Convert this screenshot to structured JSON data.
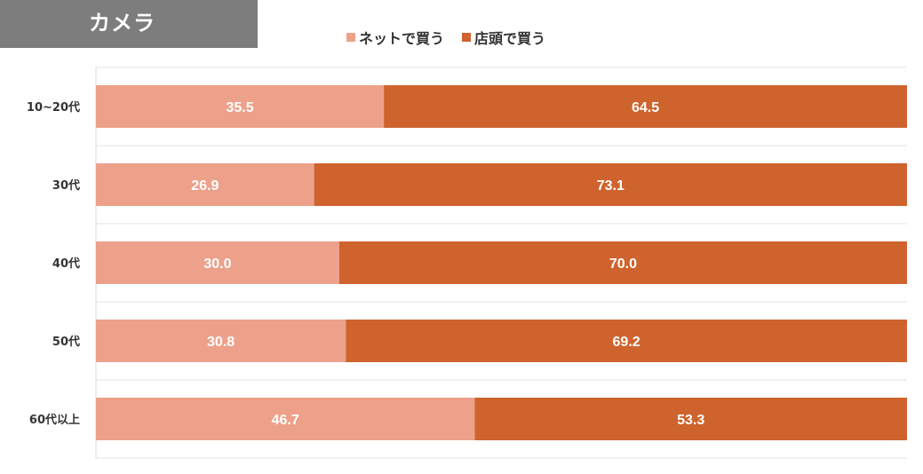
{
  "header": {
    "tag_label": "カメラ"
  },
  "colors": {
    "net": "#eda18a",
    "store": "#cf632d",
    "tag_bg": "#7d7d7d",
    "grid": "#e3e3e3"
  },
  "chart_data": {
    "type": "bar",
    "orientation": "horizontal",
    "stacked": true,
    "categories": [
      "10~20代",
      "30代",
      "40代",
      "50代",
      "60代以上"
    ],
    "series": [
      {
        "name": "ネットで買う",
        "values": [
          35.5,
          26.9,
          30.0,
          30.8,
          46.7
        ]
      },
      {
        "name": "店頭で買う",
        "values": [
          64.5,
          73.1,
          70.0,
          69.2,
          53.3
        ]
      }
    ],
    "xlim": [
      0,
      100
    ],
    "legend": "top",
    "grid": true
  }
}
